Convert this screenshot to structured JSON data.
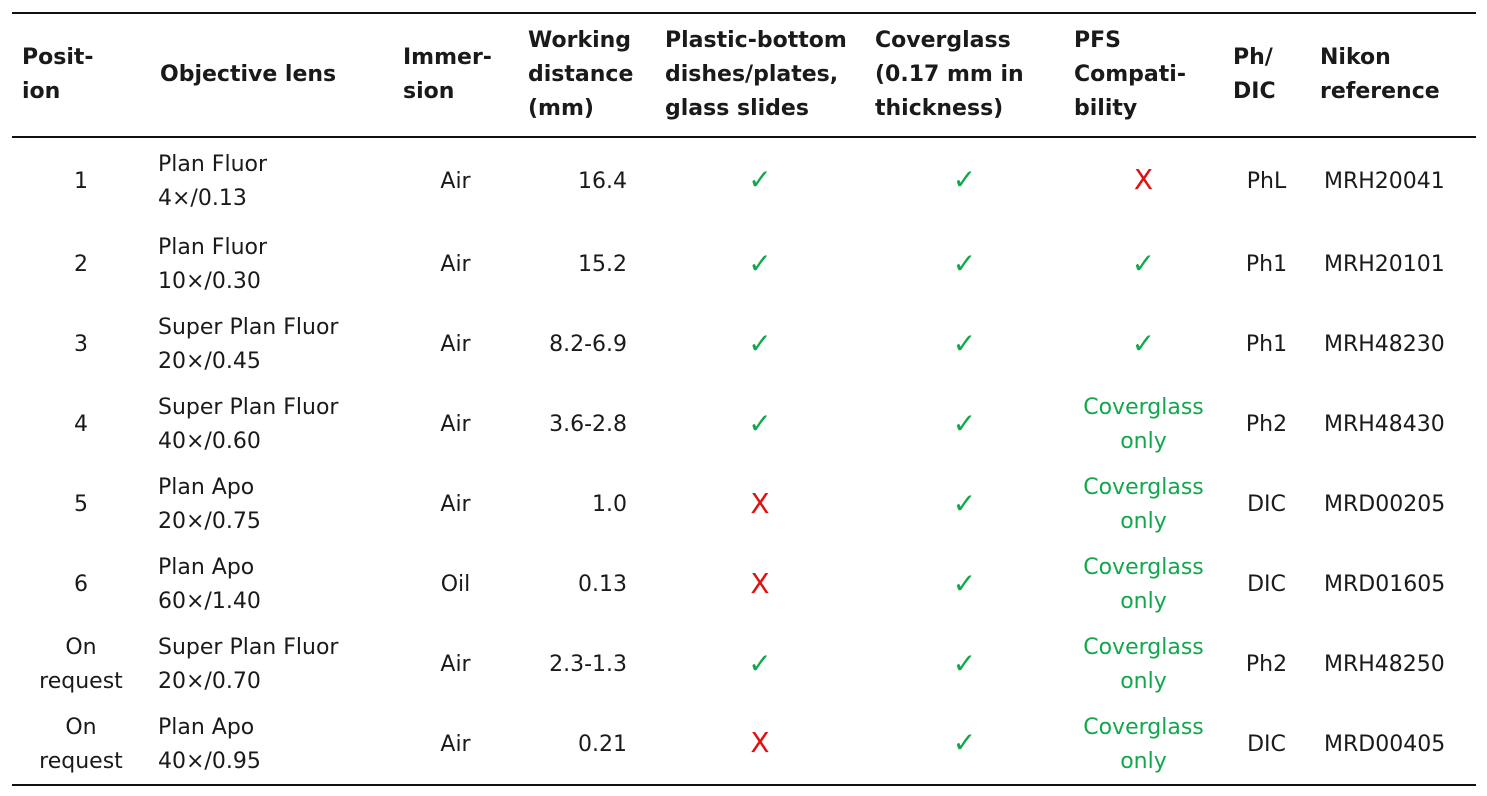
{
  "colors": {
    "check": "#11a84c",
    "cross": "#e01010",
    "rule": "#111111"
  },
  "headers": [
    "Posit-\nion",
    "Objective lens",
    "Immer-\nsion",
    "Working\ndistance\n(mm)",
    "Plastic-bottom\ndishes/plates,\nglass slides",
    "Coverglass\n(0.17 mm in\nthickness)",
    "PFS\nCompati-\nbility",
    "Ph/\nDIC",
    "Nikon\nreference"
  ],
  "rows": [
    {
      "position": "1",
      "objective": "Plan Fluor\n4×/0.13",
      "immersion": "Air",
      "working_distance": "16.4",
      "plastic": "✓",
      "coverglass": "✓",
      "pfs": "X",
      "ph_dic": "PhL",
      "reference": "MRH20041"
    },
    {
      "position": "2",
      "objective": "Plan Fluor\n10×/0.30",
      "immersion": "Air",
      "working_distance": "15.2",
      "plastic": "✓",
      "coverglass": "✓",
      "pfs": "✓",
      "ph_dic": "Ph1",
      "reference": "MRH20101"
    },
    {
      "position": "3",
      "objective": "Super Plan Fluor\n20×/0.45",
      "immersion": "Air",
      "working_distance": "8.2-6.9",
      "plastic": "✓",
      "coverglass": "✓",
      "pfs": "✓",
      "ph_dic": "Ph1",
      "reference": "MRH48230"
    },
    {
      "position": "4",
      "objective": "Super Plan Fluor\n40×/0.60",
      "immersion": "Air",
      "working_distance": "3.6-2.8",
      "plastic": "✓",
      "coverglass": "✓",
      "pfs": "Coverglass\nonly",
      "ph_dic": "Ph2",
      "reference": "MRH48430"
    },
    {
      "position": "5",
      "objective": "Plan Apo\n20×/0.75",
      "immersion": "Air",
      "working_distance": "1.0",
      "plastic": "X",
      "coverglass": "✓",
      "pfs": "Coverglass\nonly",
      "ph_dic": "DIC",
      "reference": "MRD00205"
    },
    {
      "position": "6",
      "objective": "Plan Apo\n60×/1.40",
      "immersion": "Oil",
      "working_distance": "0.13",
      "plastic": "X",
      "coverglass": "✓",
      "pfs": "Coverglass\nonly",
      "ph_dic": "DIC",
      "reference": "MRD01605"
    },
    {
      "position": "On\nrequest",
      "objective": "Super Plan Fluor\n20×/0.70",
      "immersion": "Air",
      "working_distance": "2.3-1.3",
      "plastic": "✓",
      "coverglass": "✓",
      "pfs": "Coverglass\nonly",
      "ph_dic": "Ph2",
      "reference": "MRH48250"
    },
    {
      "position": "On\nrequest",
      "objective": "Plan Apo\n40×/0.95",
      "immersion": "Air",
      "working_distance": "0.21",
      "plastic": "X",
      "coverglass": "✓",
      "pfs": "Coverglass\nonly",
      "ph_dic": "DIC",
      "reference": "MRD00405"
    }
  ]
}
